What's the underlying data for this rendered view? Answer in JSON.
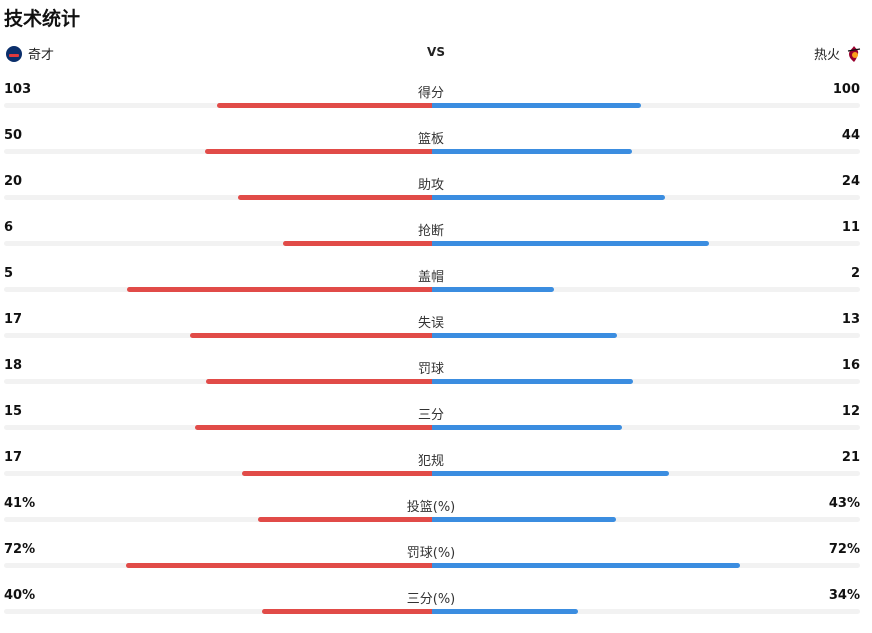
{
  "header": {
    "title": "技术统计"
  },
  "teams": {
    "left": {
      "name": "奇才",
      "logo_icon": "wizards-logo-icon",
      "color": "#e14b48"
    },
    "vs": "VS",
    "right": {
      "name": "热火",
      "logo_icon": "heat-logo-icon",
      "color": "#3b8de0"
    }
  },
  "stats": [
    {
      "label": "得分",
      "left": "103",
      "right": "100",
      "left_share": 0.502,
      "right_share": 0.488
    },
    {
      "label": "篮板",
      "left": "50",
      "right": "44",
      "left_share": 0.53,
      "right_share": 0.467
    },
    {
      "label": "助攻",
      "left": "20",
      "right": "24",
      "left_share": 0.453,
      "right_share": 0.544
    },
    {
      "label": "抢断",
      "left": "6",
      "right": "11",
      "left_share": 0.349,
      "right_share": 0.647
    },
    {
      "label": "盖帽",
      "left": "5",
      "right": "2",
      "left_share": 0.712,
      "right_share": 0.284
    },
    {
      "label": "失误",
      "left": "17",
      "right": "13",
      "left_share": 0.565,
      "right_share": 0.433
    },
    {
      "label": "罚球",
      "left": "18",
      "right": "16",
      "left_share": 0.528,
      "right_share": 0.47
    },
    {
      "label": "三分",
      "left": "15",
      "right": "12",
      "left_share": 0.553,
      "right_share": 0.444
    },
    {
      "label": "犯规",
      "left": "17",
      "right": "21",
      "left_share": 0.444,
      "right_share": 0.553
    },
    {
      "label": "投篮(%)",
      "left": "41%",
      "right": "43%",
      "left_share": 0.407,
      "right_share": 0.43
    },
    {
      "label": "罚球(%)",
      "left": "72%",
      "right": "72%",
      "left_share": 0.716,
      "right_share": 0.719
    },
    {
      "label": "三分(%)",
      "left": "40%",
      "right": "34%",
      "left_share": 0.398,
      "right_share": 0.34
    }
  ]
}
